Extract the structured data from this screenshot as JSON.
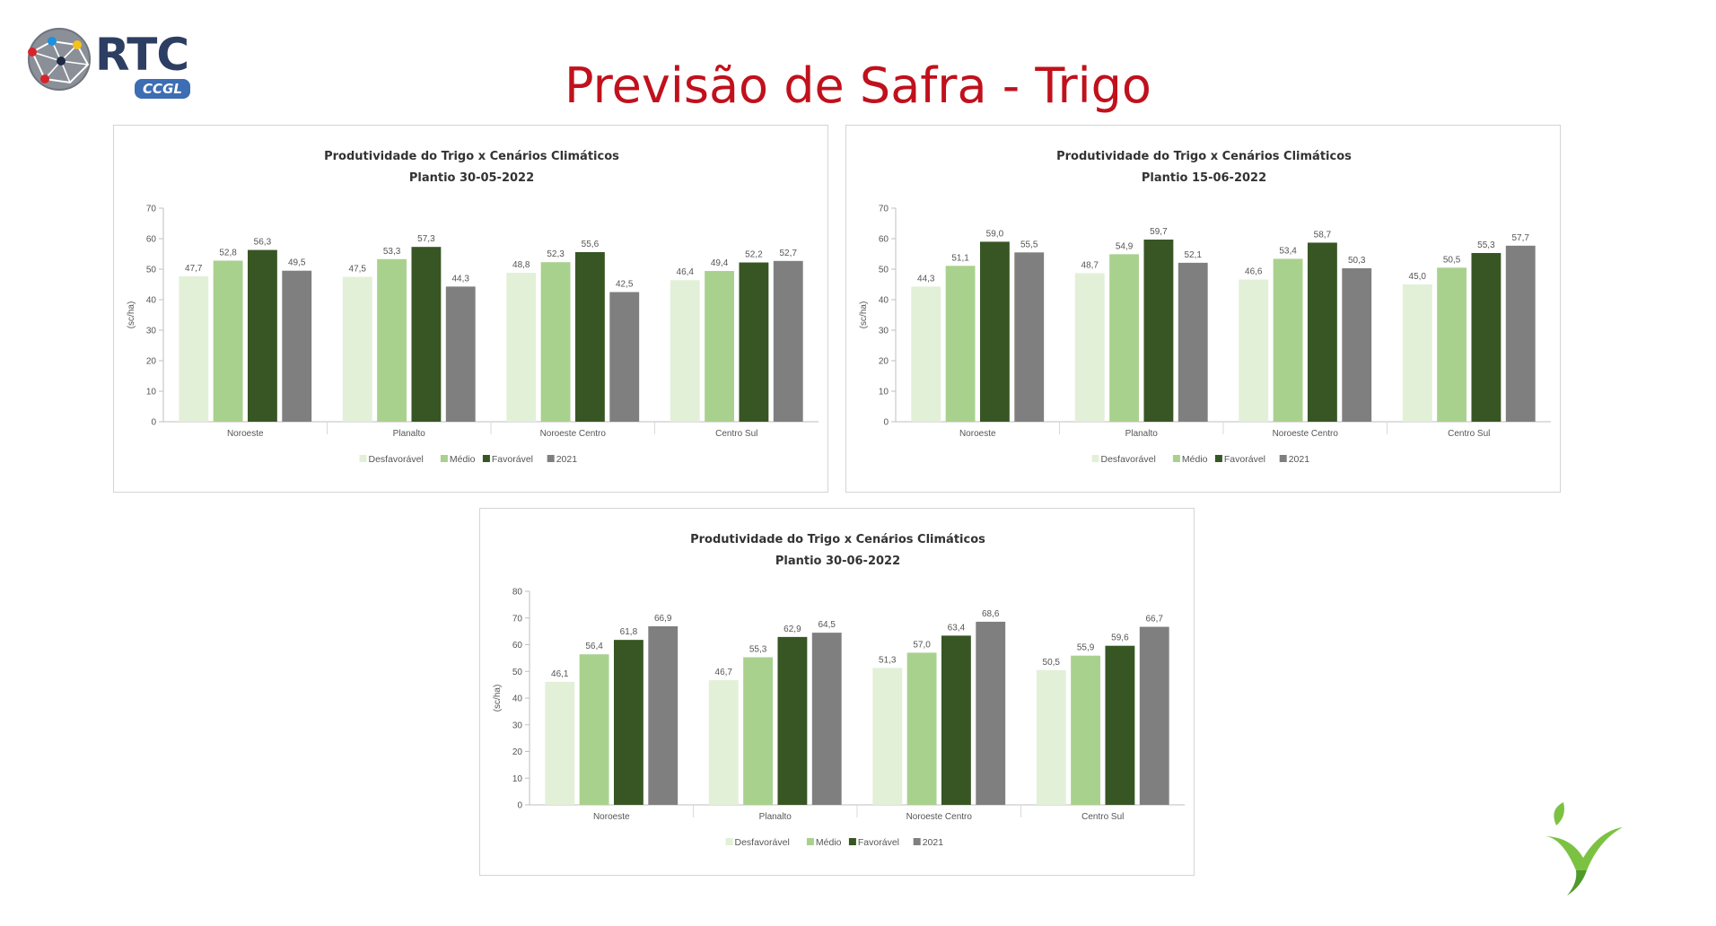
{
  "header": {
    "logo_text": "RTC",
    "logo_badge": "CCGL",
    "title": "Previsão de Safra - Trigo"
  },
  "colors": {
    "title_red": "#c0111c",
    "logo_blue": "#2d3e63"
  },
  "chart_data": [
    {
      "type": "bar",
      "title": "Produtividade do Trigo x Cenários Climáticos",
      "subtitle": "Plantio 30-05-2022",
      "ylabel": "(sc/ha)",
      "ylim": [
        0,
        70
      ],
      "yticks": [
        0,
        10,
        20,
        30,
        40,
        50,
        60,
        70
      ],
      "categories": [
        "Noroeste",
        "Planalto",
        "Noroeste Centro",
        "Centro Sul"
      ],
      "legend_position": "bottom",
      "series": [
        {
          "name": "Desfavorável",
          "color": "#e2f0d8",
          "values": [
            47.7,
            47.5,
            48.8,
            46.4
          ],
          "labels": [
            "47,7",
            "47,5",
            "48,8",
            "46,4"
          ]
        },
        {
          "name": "Médio",
          "color": "#a9d18e",
          "values": [
            52.8,
            53.3,
            52.3,
            49.4
          ],
          "labels": [
            "52,8",
            "53,3",
            "52,3",
            "49,4"
          ]
        },
        {
          "name": "Favorável",
          "color": "#375623",
          "values": [
            56.3,
            57.3,
            55.6,
            52.2
          ],
          "labels": [
            "56,3",
            "57,3",
            "55,6",
            "52,2"
          ]
        },
        {
          "name": "2021",
          "color": "#7f7f7f",
          "values": [
            49.5,
            44.3,
            42.5,
            52.7
          ],
          "labels": [
            "49,5",
            "44,3",
            "42,5",
            "52,7"
          ]
        }
      ]
    },
    {
      "type": "bar",
      "title": "Produtividade do Trigo x Cenários Climáticos",
      "subtitle": "Plantio 15-06-2022",
      "ylabel": "(sc/ha)",
      "ylim": [
        0,
        70
      ],
      "yticks": [
        0,
        10,
        20,
        30,
        40,
        50,
        60,
        70
      ],
      "categories": [
        "Noroeste",
        "Planalto",
        "Noroeste Centro",
        "Centro Sul"
      ],
      "legend_position": "bottom",
      "series": [
        {
          "name": "Desfavorável",
          "color": "#e2f0d8",
          "values": [
            44.3,
            48.7,
            46.6,
            45.0
          ],
          "labels": [
            "44,3",
            "48,7",
            "46,6",
            "45,0"
          ]
        },
        {
          "name": "Médio",
          "color": "#a9d18e",
          "values": [
            51.1,
            54.9,
            53.4,
            50.5
          ],
          "labels": [
            "51,1",
            "54,9",
            "53,4",
            "50,5"
          ]
        },
        {
          "name": "Favorável",
          "color": "#375623",
          "values": [
            59.0,
            59.7,
            58.7,
            55.3
          ],
          "labels": [
            "59,0",
            "59,7",
            "58,7",
            "55,3"
          ]
        },
        {
          "name": "2021",
          "color": "#7f7f7f",
          "values": [
            55.5,
            52.1,
            50.3,
            57.7
          ],
          "labels": [
            "55,5",
            "52,1",
            "50,3",
            "57,7"
          ]
        }
      ]
    },
    {
      "type": "bar",
      "title": "Produtividade do Trigo x Cenários Climáticos",
      "subtitle": "Plantio 30-06-2022",
      "ylabel": "(sc/ha)",
      "ylim": [
        0,
        80
      ],
      "yticks": [
        0,
        10,
        20,
        30,
        40,
        50,
        60,
        70,
        80
      ],
      "categories": [
        "Noroeste",
        "Planalto",
        "Noroeste Centro",
        "Centro Sul"
      ],
      "legend_position": "bottom",
      "series": [
        {
          "name": "Desfavorável",
          "color": "#e2f0d8",
          "values": [
            46.1,
            46.7,
            51.3,
            50.5
          ],
          "labels": [
            "46,1",
            "46,7",
            "51,3",
            "50,5"
          ]
        },
        {
          "name": "Médio",
          "color": "#a9d18e",
          "values": [
            56.4,
            55.3,
            57.0,
            55.9
          ],
          "labels": [
            "56,4",
            "55,3",
            "57,0",
            "55,9"
          ]
        },
        {
          "name": "Favorável",
          "color": "#375623",
          "values": [
            61.8,
            62.9,
            63.4,
            59.6
          ],
          "labels": [
            "61,8",
            "62,9",
            "63,4",
            "59,6"
          ]
        },
        {
          "name": "2021",
          "color": "#7f7f7f",
          "values": [
            66.9,
            64.5,
            68.6,
            66.7
          ],
          "labels": [
            "66,9",
            "64,5",
            "68,6",
            "66,7"
          ]
        }
      ]
    }
  ]
}
